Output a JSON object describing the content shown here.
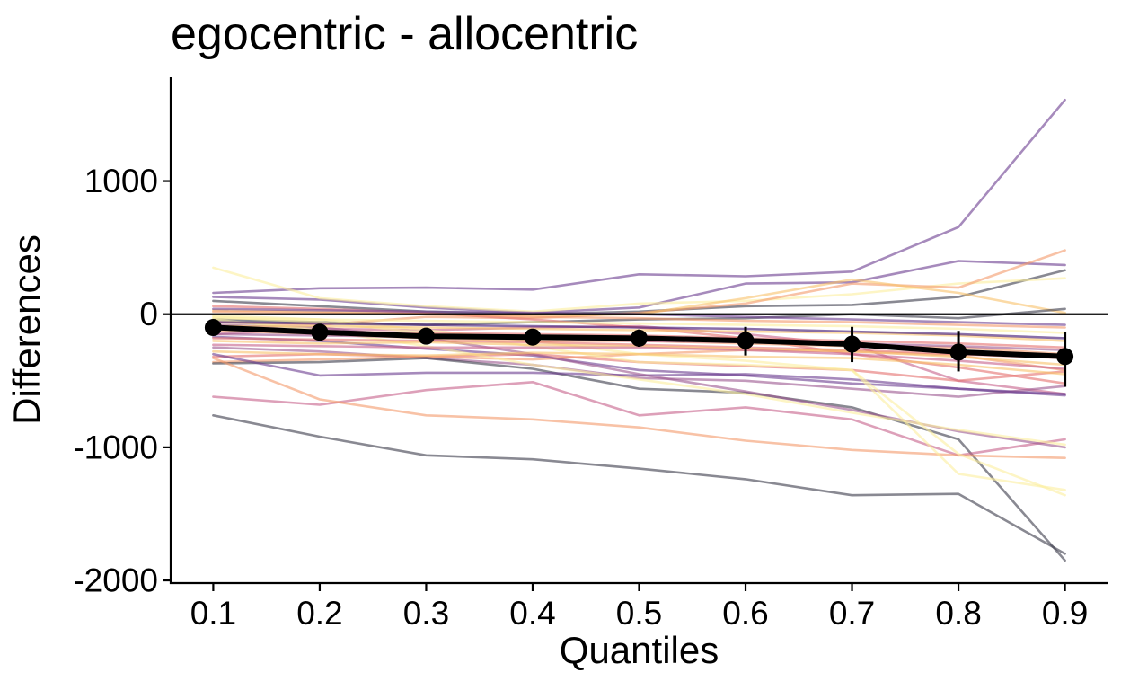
{
  "chart_data": {
    "type": "line",
    "title": "egocentric - allocentric",
    "xlabel": "Quantiles",
    "ylabel": "Differences",
    "x": [
      0.1,
      0.2,
      0.3,
      0.4,
      0.5,
      0.6,
      0.7,
      0.8,
      0.9
    ],
    "x_tick_labels": [
      "0.1",
      "0.2",
      "0.3",
      "0.4",
      "0.5",
      "0.6",
      "0.7",
      "0.8",
      "0.9"
    ],
    "y_ticks": [
      1000,
      0,
      -1000,
      -2000
    ],
    "y_tick_labels": [
      "1000",
      "0",
      "-1000",
      "-2000"
    ],
    "xlim": [
      0.06,
      0.94
    ],
    "ylim": [
      -2020,
      1780
    ],
    "reference_line": 0,
    "grid": false,
    "legend": "none",
    "colors": {
      "mean_line": "#000000",
      "zero_line": "#000000",
      "palette": [
        "#3b0f70",
        "#6b3c8f",
        "#9b5690",
        "#c6608a",
        "#e5706e",
        "#f4996a",
        "#f8c16a",
        "#fcee9f",
        "#3a3a4a"
      ]
    },
    "mean_series": {
      "values": [
        -100,
        -135,
        -165,
        -172,
        -180,
        -198,
        -225,
        -285,
        -318
      ],
      "err_low": [
        -140,
        -180,
        -215,
        -220,
        -245,
        -310,
        -360,
        -430,
        -545
      ],
      "err_high": [
        -60,
        -90,
        -115,
        -120,
        -115,
        -95,
        -95,
        -125,
        -130
      ]
    },
    "individual_series": [
      {
        "values": [
          160,
          195,
          200,
          185,
          300,
          285,
          320,
          655,
          1610
        ],
        "color_index": 1
      },
      {
        "values": [
          130,
          110,
          50,
          10,
          50,
          230,
          240,
          400,
          370
        ],
        "color_index": 1
      },
      {
        "values": [
          100,
          60,
          20,
          0,
          20,
          60,
          70,
          130,
          330
        ],
        "color_index": 8
      },
      {
        "values": [
          350,
          120,
          60,
          20,
          80,
          100,
          150,
          230,
          270
        ],
        "color_index": 7
      },
      {
        "values": [
          -60,
          -80,
          -20,
          -30,
          10,
          80,
          230,
          200,
          480
        ],
        "color_index": 5
      },
      {
        "values": [
          30,
          20,
          0,
          -10,
          0,
          120,
          260,
          160,
          10
        ],
        "color_index": 6
      },
      {
        "values": [
          -40,
          -60,
          -80,
          -60,
          -40,
          -30,
          0,
          -30,
          40
        ],
        "color_index": 8
      },
      {
        "values": [
          -150,
          -110,
          -120,
          -100,
          -90,
          -150,
          -230,
          -500,
          -600
        ],
        "color_index": 3
      },
      {
        "values": [
          -170,
          -200,
          -260,
          -310,
          -420,
          -460,
          -520,
          -560,
          -600
        ],
        "color_index": 1
      },
      {
        "values": [
          -250,
          -280,
          -330,
          -380,
          -480,
          -500,
          -560,
          -620,
          -540
        ],
        "color_index": 2
      },
      {
        "values": [
          -320,
          -300,
          -320,
          -300,
          -360,
          -390,
          -420,
          -500,
          -430
        ],
        "color_index": 4
      },
      {
        "values": [
          -360,
          -340,
          -320,
          -340,
          -300,
          -270,
          -280,
          -310,
          -420
        ],
        "color_index": 5
      },
      {
        "values": [
          -370,
          -360,
          -330,
          -410,
          -560,
          -590,
          -700,
          -940,
          -1850
        ],
        "color_index": 8
      },
      {
        "values": [
          -300,
          -460,
          -440,
          -440,
          -460,
          -450,
          -490,
          -560,
          -610
        ],
        "color_index": 1
      },
      {
        "values": [
          -620,
          -680,
          -570,
          -510,
          -760,
          -700,
          -790,
          -1060,
          -940
        ],
        "color_index": 3
      },
      {
        "values": [
          -330,
          -640,
          -760,
          -790,
          -850,
          -950,
          -1020,
          -1060,
          -1080
        ],
        "color_index": 5
      },
      {
        "values": [
          -760,
          -920,
          -1060,
          -1090,
          -1160,
          -1240,
          -1360,
          -1350,
          -1800
        ],
        "color_index": 8
      },
      {
        "values": [
          -80,
          -100,
          -180,
          -300,
          -450,
          -580,
          -720,
          -880,
          -1000
        ],
        "color_index": 2
      },
      {
        "values": [
          -40,
          -120,
          -240,
          -380,
          -490,
          -600,
          -740,
          -870,
          -980
        ],
        "color_index": 7
      },
      {
        "values": [
          -20,
          -60,
          -140,
          -240,
          -360,
          -380,
          -420,
          -1200,
          -1320
        ],
        "color_index": 7
      },
      {
        "values": [
          -10,
          -40,
          -120,
          -200,
          -300,
          -350,
          -420,
          -1050,
          -1360
        ],
        "color_index": 7
      },
      {
        "values": [
          60,
          40,
          10,
          -40,
          -100,
          -180,
          -300,
          -400,
          -520
        ],
        "color_index": 4
      },
      {
        "values": [
          -120,
          -150,
          -180,
          -200,
          -200,
          -220,
          -240,
          -250,
          -300
        ],
        "color_index": 5
      },
      {
        "values": [
          -180,
          -190,
          -200,
          -210,
          -230,
          -250,
          -270,
          -300,
          -330
        ],
        "color_index": 4
      },
      {
        "values": [
          -200,
          -220,
          -210,
          -230,
          -240,
          -260,
          -280,
          -320,
          -380
        ],
        "color_index": 6
      },
      {
        "values": [
          -230,
          -240,
          -250,
          -250,
          -250,
          -270,
          -300,
          -350,
          -410
        ],
        "color_index": 3
      },
      {
        "values": [
          -280,
          -300,
          -310,
          -290,
          -300,
          -320,
          -330,
          -380,
          -450
        ],
        "color_index": 6
      },
      {
        "values": [
          -90,
          -90,
          -100,
          -110,
          -120,
          -130,
          -140,
          -160,
          -200
        ],
        "color_index": 6
      },
      {
        "values": [
          -60,
          -70,
          -80,
          -90,
          -100,
          -110,
          -130,
          -150,
          -180
        ],
        "color_index": 0
      },
      {
        "values": [
          20,
          10,
          0,
          -20,
          -30,
          -50,
          -60,
          -80,
          -100
        ],
        "color_index": 5
      },
      {
        "values": [
          -30,
          -40,
          -50,
          -60,
          -70,
          -80,
          -90,
          -110,
          -140
        ],
        "color_index": 7
      },
      {
        "values": [
          -150,
          -160,
          -170,
          -180,
          -200,
          -210,
          -220,
          -240,
          -270
        ],
        "color_index": 2
      },
      {
        "values": [
          40,
          30,
          20,
          10,
          0,
          -20,
          -40,
          -60,
          -80
        ],
        "color_index": 1
      },
      {
        "values": [
          -110,
          -130,
          -140,
          -150,
          -160,
          -180,
          -200,
          -220,
          -250
        ],
        "color_index": 4
      }
    ]
  }
}
